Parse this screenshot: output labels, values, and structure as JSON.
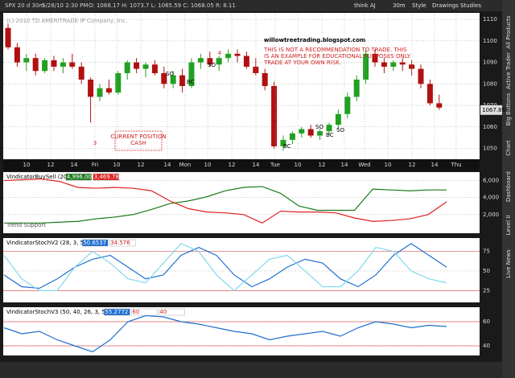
{
  "toolbar": {
    "symbol": "SPX 20 d 30m",
    "datetime": "5/28/10 2:30 PM",
    "ohlc": "O: 1068.17  H: 1073.7  L: 1065.59  C: 1068.05  R: 8.11",
    "user": "think AJ",
    "period": "30m",
    "style": "Style",
    "drawings": "Drawings",
    "studies": "Studies",
    "last_price": "1067.86"
  },
  "sidebar": [
    "All Products",
    "Active Trader",
    "Big Buttons",
    "Chart",
    "Dashboard",
    "Level II",
    "Live News"
  ],
  "price_panel": {
    "copyright": "(c) 2010 TD AMERITRADE IP Company, Inc.",
    "site": "willowtreetrading.blogspot.com",
    "disclaimer": [
      "THIS IS NOT A RECOMMENDATION TO TRADE.  THIS",
      "IS AN EXAMPLE FOR EDUCATIONAL PURPOSES ONLY.",
      "TRADE AT YOUR OWN RISK."
    ],
    "wave_labels": [
      "3",
      "4"
    ],
    "position_note": [
      "CURRENT POSITION",
      "CASH"
    ],
    "signals": [
      "SO",
      "BC",
      "SO",
      "BC",
      "SO",
      "BC",
      "SO"
    ],
    "ylim": [
      1045,
      1113
    ],
    "yticks": [
      1110,
      1100,
      1090,
      1080,
      1070,
      1060,
      1050
    ],
    "time_labels": [
      "10",
      "12",
      "14",
      "Fri",
      "10",
      "12",
      "14",
      "Mon",
      "10",
      "12",
      "14",
      "Tue",
      "10",
      "12",
      "14",
      "Wed",
      "10",
      "12",
      "14",
      "Thu"
    ],
    "candles": [
      [
        1106,
        1108,
        1096,
        1097
      ],
      [
        1097,
        1099,
        1088,
        1090
      ],
      [
        1090,
        1094,
        1086,
        1092
      ],
      [
        1092,
        1094,
        1084,
        1086
      ],
      [
        1086,
        1092,
        1085,
        1091
      ],
      [
        1091,
        1093,
        1086,
        1088
      ],
      [
        1088,
        1092,
        1085,
        1090
      ],
      [
        1090,
        1094,
        1087,
        1088
      ],
      [
        1088,
        1090,
        1080,
        1082
      ],
      [
        1082,
        1083,
        1062,
        1074
      ],
      [
        1074,
        1080,
        1072,
        1078
      ],
      [
        1078,
        1082,
        1075,
        1076
      ],
      [
        1076,
        1086,
        1075,
        1085
      ],
      [
        1085,
        1091,
        1082,
        1090
      ],
      [
        1090,
        1092,
        1085,
        1087
      ],
      [
        1087,
        1090,
        1083,
        1089
      ],
      [
        1089,
        1091,
        1084,
        1085
      ],
      [
        1085,
        1088,
        1078,
        1080
      ],
      [
        1080,
        1086,
        1078,
        1084
      ],
      [
        1084,
        1087,
        1076,
        1079
      ],
      [
        1079,
        1092,
        1078,
        1090
      ],
      [
        1090,
        1094,
        1087,
        1092
      ],
      [
        1092,
        1095,
        1088,
        1089
      ],
      [
        1089,
        1093,
        1086,
        1092
      ],
      [
        1092,
        1096,
        1090,
        1094
      ],
      [
        1094,
        1096,
        1090,
        1093
      ],
      [
        1093,
        1095,
        1087,
        1088
      ],
      [
        1088,
        1092,
        1084,
        1085
      ],
      [
        1085,
        1087,
        1077,
        1079
      ],
      [
        1079,
        1081,
        1050,
        1051
      ],
      [
        1051,
        1056,
        1049,
        1054
      ],
      [
        1054,
        1058,
        1052,
        1057
      ],
      [
        1057,
        1060,
        1055,
        1059
      ],
      [
        1059,
        1061,
        1055,
        1056
      ],
      [
        1056,
        1059,
        1054,
        1058
      ],
      [
        1058,
        1062,
        1056,
        1061
      ],
      [
        1061,
        1068,
        1059,
        1066
      ],
      [
        1066,
        1076,
        1064,
        1074
      ],
      [
        1074,
        1084,
        1072,
        1082
      ],
      [
        1082,
        1096,
        1080,
        1094
      ],
      [
        1094,
        1096,
        1088,
        1090
      ],
      [
        1090,
        1092,
        1085,
        1088
      ],
      [
        1088,
        1091,
        1086,
        1090
      ],
      [
        1090,
        1092,
        1086,
        1089
      ],
      [
        1089,
        1091,
        1084,
        1087
      ],
      [
        1087,
        1089,
        1078,
        1080
      ],
      [
        1080,
        1082,
        1070,
        1071
      ],
      [
        1071,
        1075,
        1068,
        1069
      ]
    ]
  },
  "panels": [
    {
      "title": "VindicatorBuySell (20)",
      "readouts": [
        "4,996.0037",
        "3,469.7845"
      ],
      "note": "Trend Support",
      "ylim": [
        -200,
        7000
      ],
      "yticks": [
        {
          "value": 6000,
          "label": "6,000"
        },
        {
          "value": 4000,
          "label": "4,000"
        },
        {
          "value": 2000,
          "label": "2,000"
        }
      ],
      "levels": [],
      "series": [
        {
          "color": "#1a7a1a",
          "values": [
            1000,
            1000,
            1000,
            1100,
            1200,
            1500,
            1700,
            2000,
            2600,
            3300,
            3600,
            4100,
            4800,
            5200,
            5300,
            4500,
            3000,
            2500,
            2500,
            2500,
            5000,
            4900,
            4800,
            4900,
            4900
          ]
        },
        {
          "color": "#e02020",
          "values": [
            6000,
            6100,
            6200,
            5900,
            5200,
            5100,
            5200,
            5100,
            4800,
            3600,
            2700,
            2300,
            2200,
            2000,
            1000,
            2400,
            2300,
            2300,
            2200,
            1600,
            1200,
            1300,
            1500,
            2000,
            3500
          ]
        }
      ]
    },
    {
      "title": "VindicatorStochV2 (28, 3, 5)",
      "readouts": [
        "50.6537",
        "34.576"
      ],
      "ylim": [
        10,
        92
      ],
      "yticks": [
        75,
        50,
        25
      ],
      "levels": [
        75,
        25
      ],
      "series": [
        {
          "color": "#1e6fd0",
          "values": [
            45,
            30,
            28,
            40,
            55,
            65,
            70,
            55,
            40,
            45,
            70,
            80,
            70,
            45,
            30,
            40,
            55,
            65,
            60,
            40,
            30,
            45,
            70,
            85,
            70,
            55
          ]
        },
        {
          "color": "#7fd8f0",
          "values": [
            70,
            40,
            25,
            25,
            55,
            75,
            60,
            40,
            35,
            60,
            85,
            75,
            45,
            25,
            45,
            65,
            70,
            50,
            30,
            30,
            50,
            80,
            75,
            50,
            40,
            35
          ]
        }
      ]
    },
    {
      "title": "VindicatorStochV3 (50, 40, 26, 3, 5)",
      "readouts": [
        "55.2772",
        "60",
        "40"
      ],
      "ylim": [
        32,
        72
      ],
      "yticks": [
        60,
        40
      ],
      "levels": [
        60,
        40
      ],
      "series": [
        {
          "color": "#1e6fd0",
          "values": [
            55,
            50,
            52,
            45,
            40,
            35,
            45,
            60,
            65,
            64,
            60,
            58,
            55,
            52,
            50,
            45,
            48,
            50,
            52,
            48,
            55,
            60,
            58,
            55,
            57,
            56
          ]
        }
      ]
    }
  ]
}
